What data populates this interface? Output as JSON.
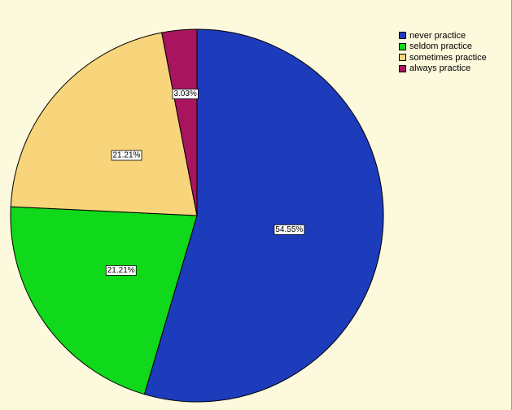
{
  "chart_data": {
    "type": "pie",
    "categories": [
      "never practice",
      "seldom practice",
      "sometimes practice",
      "always practice"
    ],
    "values": [
      54.55,
      21.21,
      21.21,
      3.03
    ],
    "data_labels": [
      "54.55%",
      "21.21%",
      "21.21%",
      "3.03%"
    ],
    "colors": [
      "#1c3cbc",
      "#10d81a",
      "#f8d47a",
      "#a8145e"
    ],
    "title": "",
    "legend": "top-right",
    "start_angle": "12 o'clock",
    "direction": "clockwise"
  }
}
